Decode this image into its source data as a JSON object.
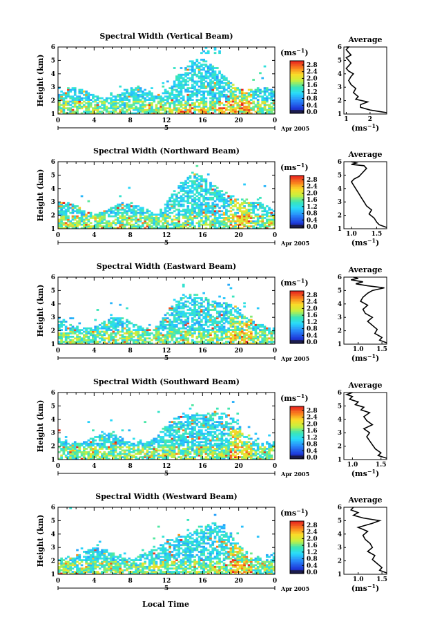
{
  "figure": {
    "xlabel": "Local Time",
    "date_label": "Apr 2005",
    "date_tick": "5",
    "units_label": "(ms",
    "units_exp": "−1",
    "average_title": "Average"
  },
  "chart_data": [
    {
      "type": "heatmap",
      "title": "Spectral Width (Vertical Beam)",
      "ylabel": "Height (km)",
      "xlabel": "",
      "x_ticks": [
        "0",
        "4",
        "8",
        "12",
        "16",
        "20",
        "0"
      ],
      "y_ticks": [
        "1",
        "2",
        "3",
        "4",
        "5",
        "6"
      ],
      "xlim": [
        0,
        24
      ],
      "ylim": [
        1,
        6
      ],
      "colorbar": {
        "label": "(ms⁻¹)",
        "ticks": [
          "2.8",
          "2.4",
          "2.0",
          "1.6",
          "1.2",
          "0.8",
          "0.4",
          "0.0"
        ],
        "range": [
          0.0,
          3.0
        ]
      },
      "profile": {
        "title": "Average",
        "xlabel": "(ms⁻¹)",
        "x_ticks": [
          "1",
          "2"
        ],
        "xlim": [
          0.9,
          2.7
        ],
        "ylim": [
          1,
          6
        ],
        "x": [
          2.7,
          2.0,
          1.6,
          1.6,
          1.9,
          1.4,
          1.5,
          1.3,
          1.4,
          1.2,
          1.1,
          1.2,
          1.3,
          1.1,
          1.0,
          1.1,
          1.2,
          1.1,
          1.0,
          1.2,
          1.1,
          1.0,
          1.1,
          1.0
        ],
        "y": [
          1.1,
          1.3,
          1.5,
          1.7,
          1.9,
          2.1,
          2.3,
          2.6,
          2.9,
          3.2,
          3.5,
          3.8,
          4.0,
          4.2,
          4.4,
          4.6,
          4.8,
          5.0,
          5.2,
          5.4,
          5.6,
          5.8,
          6.0,
          6.0
        ]
      }
    },
    {
      "type": "heatmap",
      "title": "Spectral Width (Northward Beam)",
      "ylabel": "Height (km)",
      "xlabel": "",
      "x_ticks": [
        "0",
        "4",
        "8",
        "12",
        "16",
        "20",
        "0"
      ],
      "y_ticks": [
        "1",
        "2",
        "3",
        "4",
        "5",
        "6"
      ],
      "xlim": [
        0,
        24
      ],
      "ylim": [
        1,
        6
      ],
      "colorbar": {
        "label": "(ms⁻¹)",
        "ticks": [
          "2.8",
          "2.4",
          "2.0",
          "1.6",
          "1.2",
          "0.8",
          "0.4",
          "0.0"
        ],
        "range": [
          0.0,
          3.0
        ]
      },
      "profile": {
        "title": "Average",
        "xlabel": "(ms⁻¹)",
        "x_ticks": [
          "1.0",
          "1.5"
        ],
        "xlim": [
          0.85,
          1.7
        ],
        "ylim": [
          1,
          6
        ],
        "x": [
          1.7,
          1.55,
          1.5,
          1.45,
          1.35,
          1.4,
          1.3,
          1.25,
          1.2,
          1.15,
          1.1,
          1.05,
          1.0,
          1.05,
          1.15,
          1.2,
          1.25,
          1.3,
          1.25,
          1.0,
          1.1,
          1.0
        ],
        "y": [
          1.1,
          1.3,
          1.5,
          1.8,
          2.1,
          2.4,
          2.7,
          3.0,
          3.3,
          3.6,
          3.9,
          4.2,
          4.5,
          4.7,
          4.9,
          5.1,
          5.3,
          5.5,
          5.7,
          5.8,
          5.9,
          6.0
        ]
      }
    },
    {
      "type": "heatmap",
      "title": "Spectral Width (Eastward Beam)",
      "ylabel": "Height (km)",
      "xlabel": "",
      "x_ticks": [
        "0",
        "4",
        "8",
        "12",
        "16",
        "20",
        "0"
      ],
      "y_ticks": [
        "1",
        "2",
        "3",
        "4",
        "5",
        "6"
      ],
      "xlim": [
        0,
        24
      ],
      "ylim": [
        1,
        6
      ],
      "colorbar": {
        "label": "(ms⁻¹)",
        "ticks": [
          "2.8",
          "2.4",
          "2.0",
          "1.6",
          "1.2",
          "0.8",
          "0.4",
          "0.0"
        ],
        "range": [
          0.0,
          3.0
        ]
      },
      "profile": {
        "title": "Average",
        "xlabel": "(ms⁻¹)",
        "x_ticks": [
          "1.0",
          "1.5"
        ],
        "xlim": [
          0.7,
          1.6
        ],
        "ylim": [
          1,
          6
        ],
        "x": [
          1.6,
          1.45,
          1.5,
          1.35,
          1.4,
          1.3,
          1.2,
          1.3,
          1.15,
          1.1,
          1.2,
          1.05,
          1.1,
          1.2,
          1.3,
          1.55,
          1.2,
          0.95,
          1.1,
          0.85,
          1.0,
          0.9
        ],
        "y": [
          1.1,
          1.3,
          1.5,
          1.8,
          2.1,
          2.4,
          2.7,
          3.0,
          3.3,
          3.6,
          3.9,
          4.2,
          4.5,
          4.8,
          5.0,
          5.2,
          5.35,
          5.5,
          5.65,
          5.8,
          5.9,
          6.0
        ]
      }
    },
    {
      "type": "heatmap",
      "title": "Spectral Width (Southward Beam)",
      "ylabel": "Height (km)",
      "xlabel": "",
      "x_ticks": [
        "0",
        "4",
        "8",
        "12",
        "16",
        "20",
        "0"
      ],
      "y_ticks": [
        "1",
        "2",
        "3",
        "4",
        "5",
        "6"
      ],
      "xlim": [
        0,
        24
      ],
      "ylim": [
        1,
        6
      ],
      "colorbar": {
        "label": "(ms⁻¹)",
        "ticks": [
          "2.8",
          "2.4",
          "2.0",
          "1.6",
          "1.2",
          "0.8",
          "0.4",
          "0.0"
        ],
        "range": [
          0.0,
          3.0
        ]
      },
      "profile": {
        "title": "Average",
        "xlabel": "(ms⁻¹)",
        "x_ticks": [
          "1.0",
          "1.5"
        ],
        "xlim": [
          0.85,
          1.6
        ],
        "ylim": [
          1,
          6
        ],
        "x": [
          1.6,
          1.45,
          1.5,
          1.4,
          1.35,
          1.3,
          1.25,
          1.3,
          1.2,
          1.35,
          1.25,
          1.2,
          1.3,
          1.15,
          1.2,
          1.05,
          1.1,
          0.95,
          1.0,
          0.9,
          1.0
        ],
        "y": [
          1.1,
          1.3,
          1.5,
          1.8,
          2.1,
          2.4,
          2.7,
          3.0,
          3.3,
          3.6,
          3.9,
          4.2,
          4.5,
          4.7,
          4.9,
          5.1,
          5.3,
          5.5,
          5.7,
          5.85,
          6.0
        ]
      }
    },
    {
      "type": "heatmap",
      "title": "Spectral Width (Westward Beam)",
      "ylabel": "Height (km)",
      "xlabel": "Local Time",
      "x_ticks": [
        "0",
        "4",
        "8",
        "12",
        "16",
        "20",
        "0"
      ],
      "y_ticks": [
        "1",
        "2",
        "3",
        "4",
        "5",
        "6"
      ],
      "xlim": [
        0,
        24
      ],
      "ylim": [
        1,
        6
      ],
      "colorbar": {
        "label": "(ms⁻¹)",
        "ticks": [
          "2.8",
          "2.4",
          "2.0",
          "1.6",
          "1.2",
          "0.8",
          "0.4",
          "0.0"
        ],
        "range": [
          0.0,
          3.0
        ]
      },
      "profile": {
        "title": "Average",
        "xlabel": "(ms⁻¹)",
        "x_ticks": [
          "1.0",
          "1.5"
        ],
        "xlim": [
          0.7,
          1.6
        ],
        "ylim": [
          1,
          6
        ],
        "x": [
          1.6,
          1.45,
          1.5,
          1.4,
          1.3,
          1.35,
          1.2,
          1.3,
          1.25,
          1.15,
          1.1,
          1.2,
          1.0,
          1.3,
          1.45,
          1.1,
          0.9,
          1.0,
          0.85,
          0.9
        ],
        "y": [
          1.1,
          1.3,
          1.5,
          1.8,
          2.1,
          2.4,
          2.7,
          3.0,
          3.3,
          3.6,
          3.9,
          4.2,
          4.5,
          4.8,
          5.0,
          5.2,
          5.4,
          5.6,
          5.8,
          6.0
        ]
      }
    }
  ]
}
